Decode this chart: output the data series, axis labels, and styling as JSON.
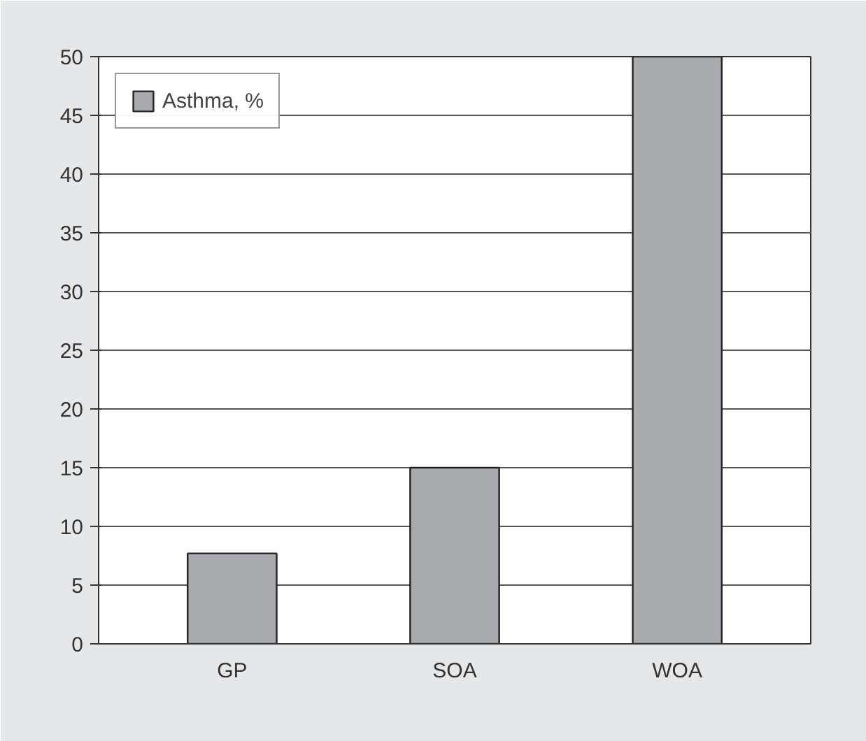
{
  "chart_data": {
    "type": "bar",
    "categories": [
      "GP",
      "SOA",
      "WOA"
    ],
    "series": [
      {
        "name": "Asthma, %",
        "color": "#a9aaad",
        "values": [
          7.7,
          15,
          50
        ]
      }
    ],
    "ylim": [
      0,
      50
    ],
    "yticks": [
      0,
      5,
      10,
      15,
      20,
      25,
      30,
      35,
      40,
      45,
      50
    ],
    "grid": "y",
    "legend": "top left"
  }
}
